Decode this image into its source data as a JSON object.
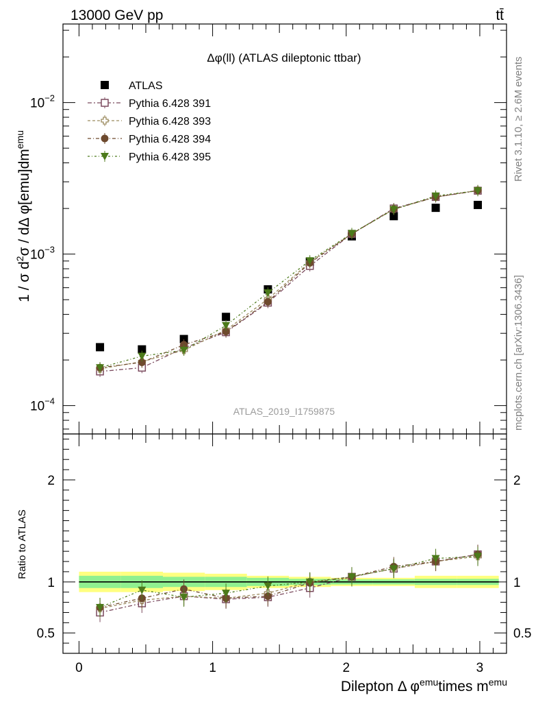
{
  "header": {
    "energy_label": "13000 GeV pp",
    "process_label": "tt̄",
    "title": "Δφ(ll) (ATLAS dileptonic ttbar)",
    "watermark": "ATLAS_2019_I1759875",
    "side_rivet": "Rivet 3.1.10, ≥ 2.6M events",
    "side_site": "mcplots.cern.ch [arXiv:1306.3436]"
  },
  "chart_data": [
    {
      "type": "scatter",
      "panel": "main",
      "title": "Δφ(ll) (ATLAS dileptonic ttbar)",
      "ylabel": "1 / σ  d²σ / dΔ φ[emu]dm^emu",
      "yscale": "log",
      "ylim": [
        6.5e-05,
        0.033
      ],
      "xlim": [
        -0.12,
        3.2
      ],
      "yticks": [
        {
          "value": 0.01,
          "label": "10",
          "exp": "−2"
        },
        {
          "value": 0.001,
          "label": "10",
          "exp": "−3"
        },
        {
          "value": 0.0001,
          "label": "10",
          "exp": "−4"
        }
      ],
      "legend_position": "top-left",
      "x": [
        0.157,
        0.471,
        0.785,
        1.1,
        1.414,
        1.728,
        2.042,
        2.356,
        2.67,
        2.985
      ],
      "series": [
        {
          "name": "ATLAS",
          "color": "#000000",
          "marker": "square-filled",
          "values": [
            0.000243,
            0.000235,
            0.000275,
            0.000385,
            0.000585,
            0.00089,
            0.00131,
            0.00178,
            0.00202,
            0.00211
          ]
        },
        {
          "name": "Pythia 6.428 391",
          "color": "#7b4a5e",
          "marker": "square-open",
          "values": [
            0.000168,
            0.000178,
            0.00024,
            0.000305,
            0.000478,
            0.000835,
            0.00136,
            0.002,
            0.00238,
            0.00262
          ]
        },
        {
          "name": "Pythia 6.428 393",
          "color": "#9b8a5e",
          "marker": "cross-open",
          "values": [
            0.000175,
            0.000195,
            0.000232,
            0.000315,
            0.000505,
            0.000885,
            0.00136,
            0.00198,
            0.00238,
            0.00263
          ]
        },
        {
          "name": "Pythia 6.428 394",
          "color": "#6e4a2e",
          "marker": "circle-filled",
          "values": [
            0.000178,
            0.000193,
            0.000252,
            0.000308,
            0.000485,
            0.000875,
            0.00136,
            0.00198,
            0.00238,
            0.00263
          ]
        },
        {
          "name": "Pythia 6.428 395",
          "color": "#4c7a1a",
          "marker": "triangle-down-filled",
          "values": [
            0.000178,
            0.000212,
            0.000232,
            0.000338,
            0.000555,
            0.000905,
            0.00137,
            0.00197,
            0.00242,
            0.00262
          ]
        }
      ]
    },
    {
      "type": "scatter",
      "panel": "ratio",
      "ylabel": "Ratio to ATLAS",
      "xlabel": "Dilepton Δ φ^emu times m^emu",
      "ylim": [
        0.3,
        2.45
      ],
      "xlim": [
        -0.12,
        3.2
      ],
      "xticks": [
        0,
        1,
        2,
        3
      ],
      "yticks": [
        0.5,
        1,
        2
      ],
      "x": [
        0.157,
        0.471,
        0.785,
        1.1,
        1.414,
        1.728,
        2.042,
        2.356,
        2.67,
        2.985
      ],
      "band_edges": [
        0.0,
        0.314,
        0.628,
        0.942,
        1.257,
        1.571,
        1.885,
        2.199,
        2.513,
        2.827,
        3.142
      ],
      "band_stat": [
        0.06,
        0.06,
        0.05,
        0.05,
        0.04,
        0.03,
        0.025,
        0.025,
        0.03,
        0.03
      ],
      "band_total": [
        0.1,
        0.1,
        0.09,
        0.08,
        0.06,
        0.05,
        0.04,
        0.04,
        0.06,
        0.06
      ],
      "series": [
        {
          "name": "Pythia 6.428 391",
          "values": [
            0.7,
            0.79,
            0.86,
            0.83,
            0.85,
            0.94,
            1.05,
            1.13,
            1.2,
            1.27
          ]
        },
        {
          "name": "Pythia 6.428 393",
          "values": [
            0.74,
            0.82,
            0.86,
            0.84,
            0.89,
            1.0,
            1.05,
            1.13,
            1.2,
            1.25
          ]
        },
        {
          "name": "Pythia 6.428 394",
          "values": [
            0.75,
            0.84,
            0.93,
            0.84,
            0.86,
            0.99,
            1.05,
            1.15,
            1.2,
            1.27
          ]
        },
        {
          "name": "Pythia 6.428 395",
          "values": [
            0.75,
            0.92,
            0.85,
            0.89,
            0.96,
            1.0,
            1.05,
            1.13,
            1.23,
            1.25
          ]
        }
      ]
    }
  ]
}
